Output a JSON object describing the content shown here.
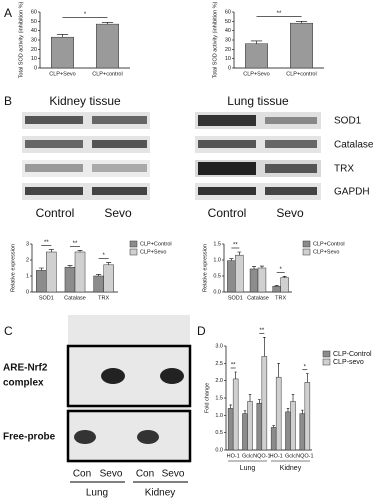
{
  "panels": [
    "A",
    "B",
    "C",
    "D"
  ],
  "blots": {
    "tissues": [
      "Kidney tissue",
      "Lung tissue"
    ],
    "proteins": [
      "SOD1",
      "Catalase",
      "TRX",
      "GAPDH"
    ],
    "lanes": [
      "Control",
      "Sevo"
    ]
  },
  "gel": {
    "bands": [
      [
        "ARE-Nrf2",
        "complex"
      ],
      [
        "Free-probe"
      ]
    ],
    "lanes": [
      "Con",
      "Sevo",
      "Con",
      "Sevo"
    ],
    "groups": [
      "Lung",
      "Kidney"
    ]
  },
  "chart_data": [
    {
      "type": "bar",
      "ylabel": "Total SOD activity (inhibition %)",
      "categories": [
        "CLP+Sevo",
        "CLP+control"
      ],
      "series": [
        {
          "color": "#9a9a9a",
          "values": [
            33,
            47
          ],
          "errors": [
            3,
            2
          ]
        }
      ],
      "ylim": [
        0,
        60
      ],
      "yticks": [
        0,
        10,
        20,
        30,
        40,
        50,
        60
      ],
      "annotations": [
        "*"
      ]
    },
    {
      "type": "bar",
      "ylabel": "Total SOD activity (inhibition %)",
      "categories": [
        "CLP+Sevo",
        "CLP+control"
      ],
      "series": [
        {
          "color": "#9a9a9a",
          "values": [
            26,
            48
          ],
          "errors": [
            3,
            2
          ]
        }
      ],
      "ylim": [
        0,
        60
      ],
      "yticks": [
        0,
        10,
        20,
        30,
        40,
        50,
        60
      ],
      "annotations": [
        "**"
      ]
    },
    {
      "type": "bar",
      "ylabel": "Relative expression",
      "categories": [
        "SOD1",
        "Catalase",
        "TRX"
      ],
      "series": [
        {
          "name": "CLP+Control",
          "color": "#8c8c8c",
          "values": [
            1.35,
            1.55,
            1.0
          ],
          "errors": [
            0.15,
            0.1,
            0.1
          ]
        },
        {
          "name": "CLP+Sevo",
          "color": "#d0d0d0",
          "values": [
            2.5,
            2.5,
            1.7
          ],
          "errors": [
            0.15,
            0.1,
            0.15
          ]
        }
      ],
      "ylim": [
        0,
        3
      ],
      "yticks": [
        0,
        1,
        2,
        3
      ],
      "annotations": [
        "**",
        "**",
        "*"
      ],
      "legend": "right"
    },
    {
      "type": "bar",
      "ylabel": "Relative expression",
      "categories": [
        "SOD1",
        "Catalase",
        "TRX"
      ],
      "series": [
        {
          "name": "CLP+Control",
          "color": "#8c8c8c",
          "values": [
            0.98,
            0.72,
            0.18
          ],
          "errors": [
            0.06,
            0.08,
            0.02
          ]
        },
        {
          "name": "CLP+Sevo",
          "color": "#d0d0d0",
          "values": [
            1.15,
            0.75,
            0.45
          ],
          "errors": [
            0.1,
            0.06,
            0.04
          ]
        }
      ],
      "ylim": [
        0,
        1.5
      ],
      "yticks": [
        {
          "value": 0,
          "label": "0.0"
        },
        0.5,
        {
          "value": 1,
          "label": "1.0"
        },
        1.5
      ],
      "annotations": [
        "**",
        null,
        "*"
      ],
      "legend": "right"
    },
    {
      "type": "bar",
      "ylabel": "Fold change",
      "categories": [
        "HO-1",
        "Gclc",
        "NQO-1",
        "HO-1",
        "Gclc",
        "NQO-1"
      ],
      "groups": [
        "Lung",
        "Kidney"
      ],
      "series": [
        {
          "name": "CLP-Control",
          "color": "#8c8c8c",
          "values": [
            1.2,
            1.05,
            1.35,
            0.65,
            1.1,
            1.05
          ],
          "errors": [
            0.1,
            0.08,
            0.1,
            0.05,
            0.1,
            0.1
          ]
        },
        {
          "name": "CLP-sevo",
          "color": "#d0d0d0",
          "values": [
            2.05,
            1.4,
            2.7,
            2.1,
            1.4,
            1.95
          ],
          "errors": [
            0.2,
            0.2,
            0.55,
            0.4,
            0.2,
            0.25
          ]
        }
      ],
      "ylim": [
        0,
        3
      ],
      "yticks": [
        {
          "value": 0,
          "label": "0.0"
        },
        0.5,
        {
          "value": 1,
          "label": "1.0"
        },
        1.5,
        {
          "value": 2,
          "label": "2.0"
        },
        2.5,
        {
          "value": 3,
          "label": "3.0"
        }
      ],
      "annotations": [
        "**",
        null,
        "**",
        null,
        null,
        "*"
      ],
      "legend": "right"
    }
  ]
}
